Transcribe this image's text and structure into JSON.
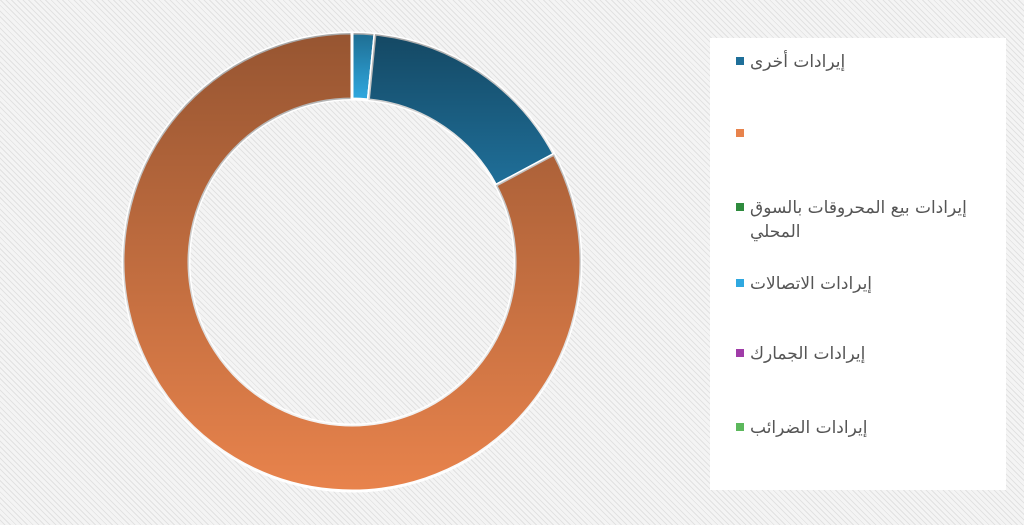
{
  "chart_data": {
    "type": "donut",
    "categories": [
      "إيرادات أخرى",
      null,
      "إيرادات بيع المحروقات بالسوق المحلي",
      "إيرادات الاتصالات",
      "إيرادات الجمارك",
      "إيرادات الضرائب"
    ],
    "values": [
      15.6,
      82.8,
      0,
      1.6,
      0,
      0
    ],
    "colors": [
      "#1f6f99",
      "#e8834c",
      "#2e8b3d",
      "#2fa8e0",
      "#a03ca8",
      "#5cb85c"
    ]
  }
}
